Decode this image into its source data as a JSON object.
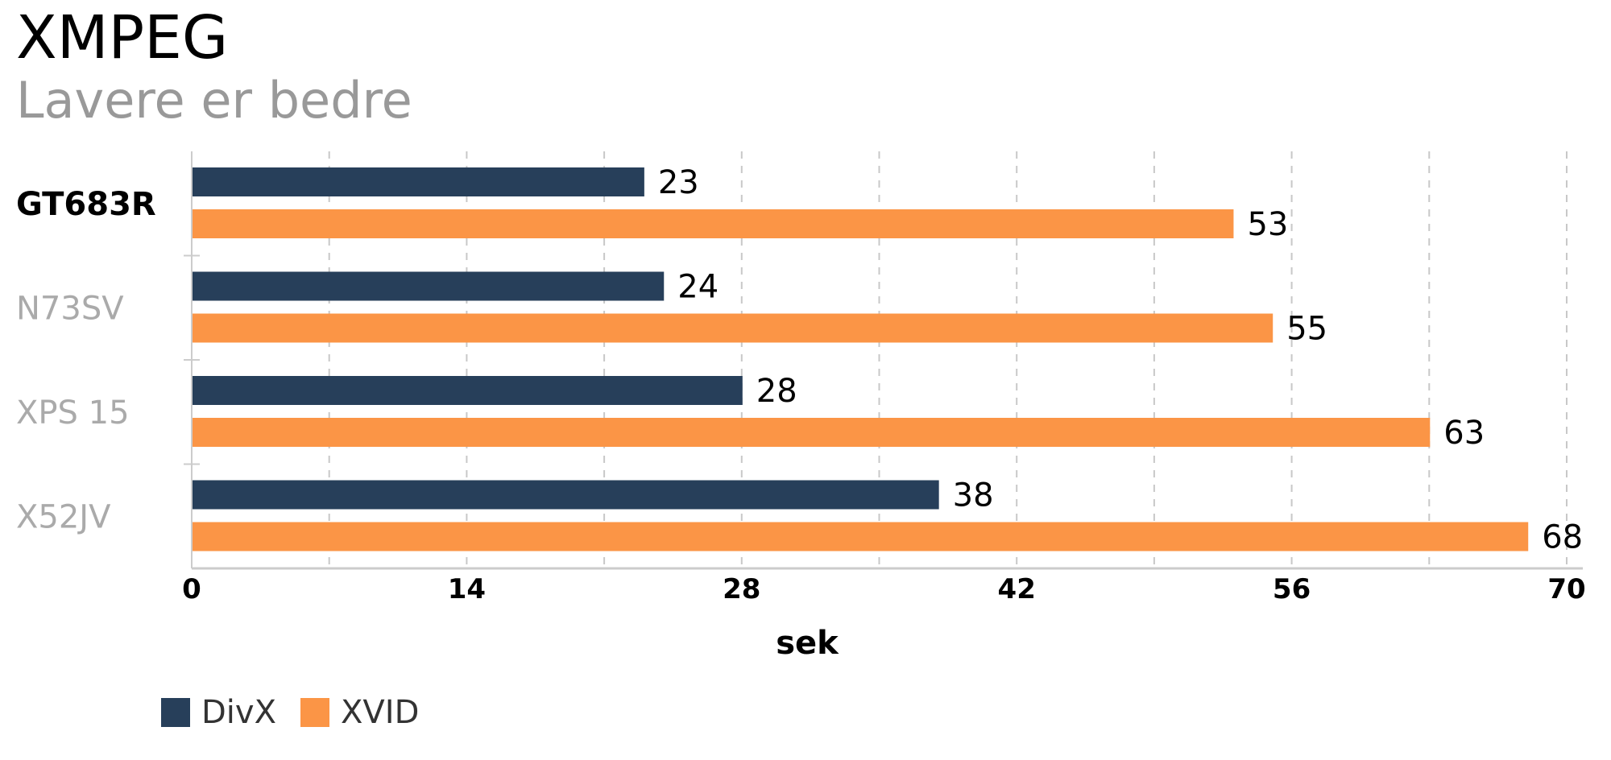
{
  "chart_data": {
    "type": "bar",
    "orientation": "horizontal",
    "title": "XMPEG",
    "subtitle": "Lavere er bedre",
    "xlabel": "sek",
    "ylabel": "",
    "xlim": [
      0,
      70
    ],
    "ticks": [
      "0",
      "14",
      "28",
      "42",
      "56",
      "70"
    ],
    "tick_values": [
      0,
      14,
      28,
      42,
      56,
      70
    ],
    "grid": true,
    "legend_position": "bottom-left",
    "categories": [
      "GT683R",
      "N73SV",
      "XPS 15",
      "X52JV"
    ],
    "highlighted_category": "GT683R",
    "series": [
      {
        "name": "DivX",
        "color": "#273f5a",
        "values": [
          23,
          24,
          28,
          38
        ]
      },
      {
        "name": "XVID",
        "color": "#fb9546",
        "values": [
          53,
          55,
          63,
          68
        ]
      }
    ]
  },
  "colors": {
    "category_highlight": "#000000",
    "category_muted": "#aaaaaa",
    "grid": "#c8c8c8",
    "axis": "#cccccc"
  }
}
